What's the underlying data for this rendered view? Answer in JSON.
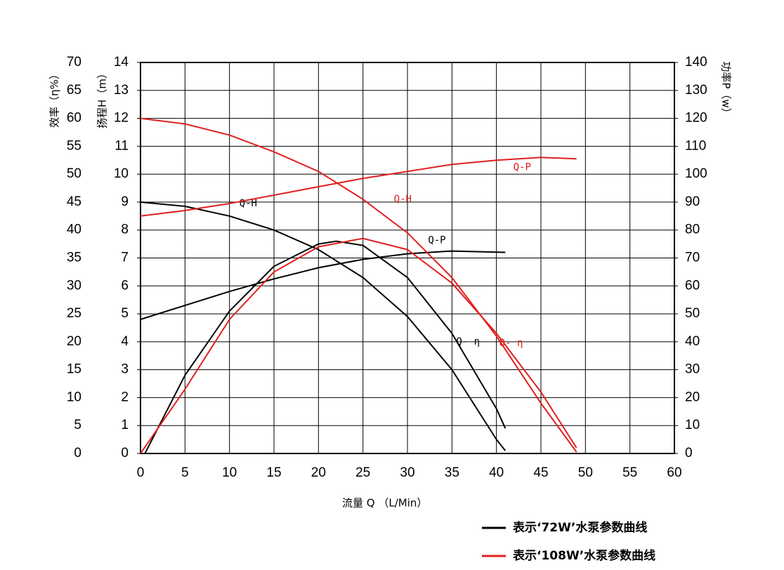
{
  "chart_data": {
    "type": "line",
    "x_label": "流量 Q （L/Min）",
    "y_label": "扬程H（m）",
    "y2_label": "功率P（w）",
    "y3_label": "效率（η%）",
    "xlim": [
      0,
      60
    ],
    "xticks": [
      0,
      5,
      10,
      15,
      20,
      25,
      30,
      35,
      40,
      45,
      50,
      55,
      60
    ],
    "ylim": [
      0,
      14
    ],
    "yticks": [
      0,
      1,
      2,
      3,
      4,
      5,
      6,
      7,
      8,
      9,
      10,
      11,
      12,
      13,
      14
    ],
    "y2lim": [
      0,
      140
    ],
    "y2ticks": [
      0,
      10,
      20,
      30,
      40,
      50,
      60,
      70,
      80,
      90,
      100,
      110,
      120,
      130,
      140
    ],
    "y3lim": [
      0,
      70
    ],
    "y3ticks": [
      0,
      5,
      10,
      15,
      20,
      25,
      30,
      35,
      40,
      45,
      50,
      55,
      60,
      65,
      70
    ],
    "grid": true,
    "legend": [
      {
        "label": "表示‘72W’水泵参数曲线",
        "color": "#000000"
      },
      {
        "label": "表示‘108W’水泵参数曲线",
        "color": "#e02020"
      }
    ],
    "series": [
      {
        "name": "Q-H",
        "color": "#000000",
        "axis": "y",
        "x": [
          0,
          5,
          10,
          15,
          20,
          25,
          30,
          35,
          40,
          41
        ],
        "values": [
          9.0,
          8.85,
          8.5,
          8.0,
          7.3,
          6.3,
          4.9,
          3.0,
          0.5,
          0.1
        ]
      },
      {
        "name": "Q-P",
        "color": "#000000",
        "axis": "y2",
        "x": [
          0,
          5,
          10,
          15,
          20,
          25,
          30,
          35,
          41
        ],
        "values": [
          48,
          53,
          58,
          62.5,
          66.5,
          69.5,
          71.5,
          72.5,
          72
        ]
      },
      {
        "name": "Q- η",
        "color": "#000000",
        "axis": "y3",
        "x": [
          0.5,
          5,
          10,
          15,
          20,
          22,
          25,
          30,
          35,
          40,
          41
        ],
        "values": [
          0,
          14,
          25.5,
          33.5,
          37.5,
          38,
          37.25,
          31.5,
          21.5,
          8,
          4.5
        ]
      },
      {
        "name": "Q-H",
        "color": "#e02020",
        "axis": "y",
        "x": [
          0,
          5,
          10,
          15,
          20,
          25,
          30,
          35,
          40,
          45,
          49
        ],
        "values": [
          12,
          11.8,
          11.4,
          10.8,
          10.1,
          9.1,
          7.9,
          6.3,
          4.2,
          1.8,
          0.05
        ]
      },
      {
        "name": "Q-P",
        "color": "#e02020",
        "axis": "y2",
        "x": [
          0,
          5,
          10,
          15,
          20,
          25,
          30,
          35,
          40,
          45,
          49
        ],
        "values": [
          85,
          87,
          89.5,
          92.5,
          95.5,
          98.5,
          101,
          103.5,
          105,
          106,
          105.5
        ]
      },
      {
        "name": "Q- η",
        "color": "#e02020",
        "axis": "y3",
        "x": [
          0,
          5,
          10,
          15,
          20,
          25,
          30,
          35,
          40,
          45,
          49
        ],
        "values": [
          0,
          11.5,
          24,
          32.5,
          37,
          38.5,
          36.5,
          30.5,
          21.5,
          11,
          1
        ]
      }
    ]
  }
}
